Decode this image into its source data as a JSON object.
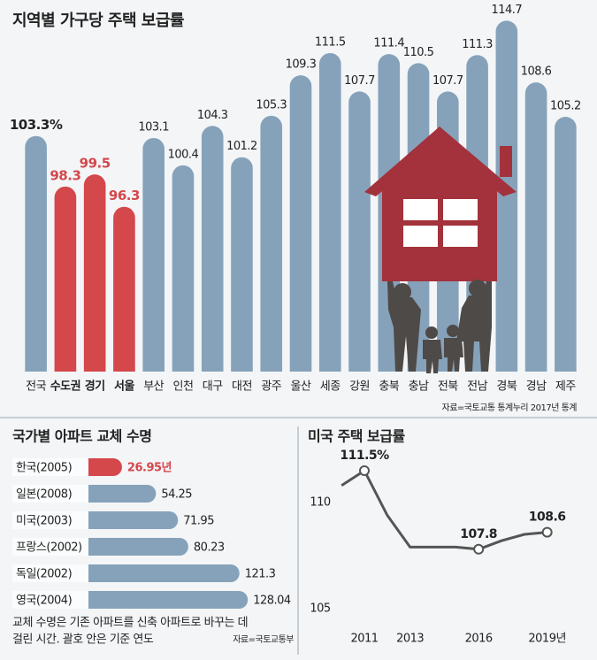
{
  "chart_data": [
    {
      "type": "bar",
      "title": "지역별 가구당 주택 보급률",
      "categories": [
        "전국",
        "수도권",
        "경기",
        "서울",
        "부산",
        "인천",
        "대구",
        "대전",
        "광주",
        "울산",
        "세종",
        "강원",
        "충북",
        "충남",
        "전북",
        "전남",
        "경북",
        "경남",
        "제주"
      ],
      "values": [
        103.3,
        98.3,
        99.5,
        96.3,
        103.1,
        100.4,
        104.3,
        101.2,
        105.3,
        109.3,
        111.5,
        107.7,
        111.4,
        110.5,
        107.7,
        111.3,
        114.7,
        108.6,
        105.2
      ],
      "value_labels": [
        "103.3%",
        "98.3",
        "99.5",
        "96.3",
        "103.1",
        "100.4",
        "104.3",
        "101.2",
        "105.3",
        "109.3",
        "111.5",
        "107.7",
        "111.4",
        "110.5",
        "107.7",
        "111.3",
        "114.7",
        "108.6",
        "105.2"
      ],
      "color": "#86a2ba",
      "colors": [
        "#86a2ba",
        "#d4474b",
        "#d4474b",
        "#d4474b",
        "#86a2ba",
        "#86a2ba",
        "#86a2ba",
        "#86a2ba",
        "#86a2ba",
        "#86a2ba",
        "#86a2ba",
        "#86a2ba",
        "#86a2ba",
        "#86a2ba",
        "#86a2ba",
        "#86a2ba",
        "#86a2ba",
        "#86a2ba",
        "#86a2ba"
      ],
      "ylim": [
        80,
        115
      ],
      "source": "자료=국토교통 통계누리 2017년 통계"
    },
    {
      "type": "barh",
      "title": "국가별 아파트 교체 수명",
      "categories": [
        "한국(2005)",
        "일본(2008)",
        "미국(2003)",
        "프랑스(2002)",
        "독일(2002)",
        "영국(2004)"
      ],
      "values": [
        26.95,
        54.25,
        71.95,
        80.23,
        121.3,
        128.04
      ],
      "value_labels": [
        "26.95년",
        "54.25",
        "71.95",
        "80.23",
        "121.3",
        "128.04"
      ],
      "colors": [
        "#d4474b",
        "#86a2ba",
        "#86a2ba",
        "#86a2ba",
        "#86a2ba",
        "#86a2ba"
      ],
      "xlim": [
        0,
        135
      ],
      "note": [
        "교체 수명은 기존 아파트를 신축 아파트로 바꾸는 데",
        "걸린 시간. 괄호 안은 기준 연도"
      ],
      "source": "자료=국토교통부"
    },
    {
      "type": "line",
      "title": "미국 주택 보급률",
      "x": [
        2010,
        2011,
        2012,
        2013,
        2014,
        2015,
        2016,
        2017,
        2018,
        2019
      ],
      "values": [
        110.8,
        111.5,
        109.4,
        107.9,
        107.9,
        107.9,
        107.8,
        108.2,
        108.5,
        108.6
      ],
      "value_labels": [
        null,
        "111.5%",
        null,
        null,
        null,
        null,
        "107.8",
        null,
        null,
        "108.6"
      ],
      "color": "#555555",
      "xlim": [
        2008.6,
        2020.6
      ],
      "xticks": [
        2011,
        2013,
        2016,
        {
          "value": 2019,
          "label": "2019년"
        }
      ],
      "ylim": [
        104.5,
        112
      ],
      "yticks": [
        105,
        110
      ]
    }
  ]
}
